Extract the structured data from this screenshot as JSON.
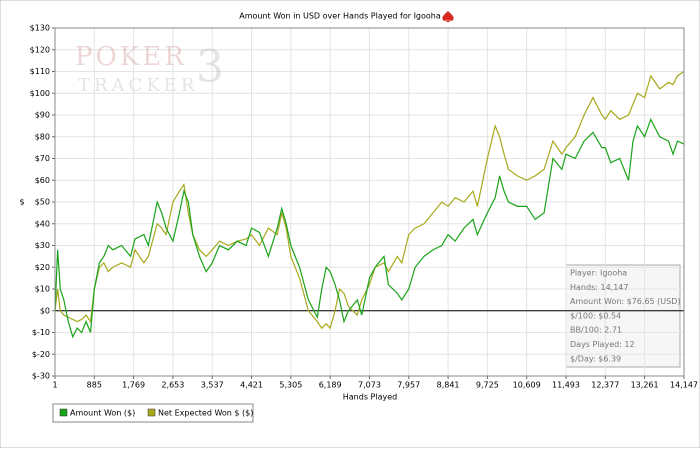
{
  "chart_data": {
    "type": "line",
    "title": "Amount Won in USD over Hands Played for Igooha",
    "watermark": {
      "line1": "POKER",
      "line2": "TRACKER",
      "mark": "3"
    },
    "xlabel": "Hands Played",
    "ylabel": "$",
    "xlim": [
      1,
      14147
    ],
    "ylim": [
      -30,
      130
    ],
    "grid": true,
    "xticks": [
      1,
      885,
      {
        "value": 1769,
        "label": "1,769"
      },
      {
        "value": 2653,
        "label": "2,653"
      },
      {
        "value": 3537,
        "label": "3,537"
      },
      {
        "value": 4421,
        "label": "4,421"
      },
      {
        "value": 5305,
        "label": "5,305"
      },
      {
        "value": 6189,
        "label": "6,189"
      },
      {
        "value": 7073,
        "label": "7,073"
      },
      {
        "value": 7957,
        "label": "7,957"
      },
      {
        "value": 8841,
        "label": "8,841"
      },
      {
        "value": 9725,
        "label": "9,725"
      },
      {
        "value": 10609,
        "label": "10,609"
      },
      {
        "value": 11493,
        "label": "11,493"
      },
      {
        "value": 12377,
        "label": "12,377"
      },
      {
        "value": 13261,
        "label": "13,261"
      },
      {
        "value": 14147,
        "label": "14,147"
      }
    ],
    "yticks": [
      {
        "value": -30,
        "label": "$-30"
      },
      {
        "value": -20,
        "label": "$-20"
      },
      {
        "value": -10,
        "label": "$-10"
      },
      {
        "value": 0,
        "label": "$0"
      },
      {
        "value": 10,
        "label": "$10"
      },
      {
        "value": 20,
        "label": "$20"
      },
      {
        "value": 30,
        "label": "$30"
      },
      {
        "value": 40,
        "label": "$40"
      },
      {
        "value": 50,
        "label": "$50"
      },
      {
        "value": 60,
        "label": "$60"
      },
      {
        "value": 70,
        "label": "$70"
      },
      {
        "value": 80,
        "label": "$80"
      },
      {
        "value": 90,
        "label": "$90"
      },
      {
        "value": 100,
        "label": "$100"
      },
      {
        "value": 110,
        "label": "$110"
      },
      {
        "value": 120,
        "label": "$120"
      },
      {
        "value": 130,
        "label": "$130"
      }
    ],
    "x": [
      1,
      60,
      120,
      200,
      300,
      400,
      500,
      600,
      700,
      800,
      885,
      1000,
      1100,
      1200,
      1300,
      1500,
      1700,
      1800,
      2000,
      2100,
      2300,
      2400,
      2500,
      2653,
      2800,
      2900,
      3000,
      3100,
      3250,
      3400,
      3537,
      3700,
      3900,
      4100,
      4300,
      4421,
      4600,
      4800,
      5000,
      5100,
      5200,
      5305,
      5500,
      5700,
      5900,
      6000,
      6100,
      6189,
      6300,
      6400,
      6500,
      6600,
      6800,
      6900,
      7073,
      7200,
      7400,
      7500,
      7700,
      7800,
      7957,
      8100,
      8300,
      8500,
      8700,
      8841,
      9000,
      9200,
      9400,
      9500,
      9725,
      9900,
      10000,
      10100,
      10200,
      10400,
      10609,
      10800,
      11000,
      11200,
      11400,
      11493,
      11700,
      11900,
      12100,
      12300,
      12377,
      12500,
      12700,
      12900,
      13000,
      13100,
      13261,
      13400,
      13600,
      13800,
      13900,
      14000,
      14147
    ],
    "series": [
      {
        "name": "Amount Won ($)",
        "color": "#1aa31a",
        "values": [
          0,
          28,
          10,
          5,
          -5,
          -12,
          -8,
          -10,
          -5,
          -10,
          10,
          22,
          25,
          30,
          28,
          30,
          25,
          33,
          35,
          30,
          50,
          45,
          38,
          32,
          45,
          55,
          50,
          35,
          25,
          18,
          22,
          30,
          28,
          32,
          30,
          38,
          36,
          25,
          38,
          47,
          40,
          30,
          20,
          5,
          -3,
          10,
          20,
          18,
          12,
          5,
          -5,
          0,
          5,
          -2,
          15,
          20,
          25,
          12,
          8,
          5,
          10,
          20,
          25,
          28,
          30,
          35,
          32,
          38,
          42,
          35,
          45,
          52,
          62,
          55,
          50,
          48,
          48,
          42,
          45,
          70,
          65,
          72,
          70,
          78,
          82,
          75,
          75,
          68,
          70,
          60,
          78,
          85,
          80,
          88,
          80,
          78,
          72,
          78,
          76.65
        ]
      },
      {
        "name": "Net Expected Won $ ($)",
        "color": "#a8a81c",
        "values": [
          0,
          10,
          0,
          -2,
          -3,
          -4,
          -5,
          -4,
          -2,
          -5,
          10,
          20,
          22,
          18,
          20,
          22,
          20,
          28,
          22,
          25,
          40,
          38,
          35,
          50,
          55,
          58,
          45,
          35,
          28,
          25,
          28,
          32,
          30,
          32,
          33,
          35,
          30,
          38,
          35,
          45,
          38,
          25,
          15,
          0,
          -5,
          -8,
          -6,
          -8,
          0,
          10,
          8,
          2,
          -2,
          5,
          12,
          20,
          22,
          18,
          25,
          22,
          35,
          38,
          40,
          45,
          50,
          48,
          52,
          50,
          55,
          48,
          70,
          85,
          80,
          72,
          65,
          62,
          60,
          62,
          65,
          78,
          72,
          75,
          80,
          90,
          98,
          90,
          88,
          92,
          88,
          90,
          95,
          100,
          98,
          108,
          102,
          105,
          104,
          108,
          110
        ]
      }
    ],
    "info_box": [
      "Player: Igooha",
      "Hands: 14,147",
      "Amount Won: $76.65 (USD)",
      "$/100: $0.54",
      "BB/100: 2.71",
      "Days Played: 12",
      "$/Day: $6.39"
    ]
  }
}
